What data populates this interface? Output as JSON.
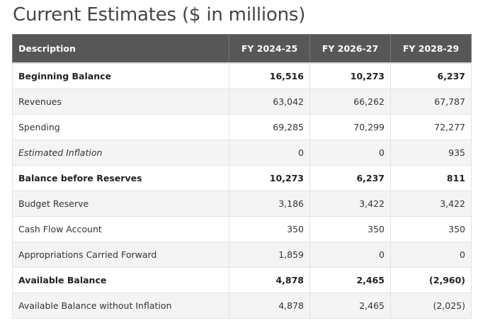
{
  "title": "Current Estimates ($ in millions)",
  "table": {
    "headers": [
      "Description",
      "FY 2024-25",
      "FY 2026-27",
      "FY 2028-29"
    ],
    "rows": [
      {
        "label": "Beginning Balance",
        "values": [
          "16,516",
          "10,273",
          "6,237"
        ],
        "style": "bold"
      },
      {
        "label": "Revenues",
        "values": [
          "63,042",
          "66,262",
          "67,787"
        ],
        "style": "normal"
      },
      {
        "label": "Spending",
        "values": [
          "69,285",
          "70,299",
          "72,277"
        ],
        "style": "normal"
      },
      {
        "label": "Estimated Inflation",
        "values": [
          "0",
          "0",
          "935"
        ],
        "style": "italic"
      },
      {
        "label": "Balance before Reserves",
        "values": [
          "10,273",
          "6,237",
          "811"
        ],
        "style": "bold"
      },
      {
        "label": "Budget Reserve",
        "values": [
          "3,186",
          "3,422",
          "3,422"
        ],
        "style": "normal"
      },
      {
        "label": "Cash Flow Account",
        "values": [
          "350",
          "350",
          "350"
        ],
        "style": "normal"
      },
      {
        "label": "Appropriations Carried Forward",
        "values": [
          "1,859",
          "0",
          "0"
        ],
        "style": "normal"
      },
      {
        "label": "Available Balance",
        "values": [
          "4,878",
          "2,465",
          "(2,960)"
        ],
        "style": "bold"
      },
      {
        "label": "Available Balance without Inflation",
        "values": [
          "4,878",
          "2,465",
          "(2,025)"
        ],
        "style": "normal"
      }
    ]
  },
  "colors": {
    "header_bg": "#575757",
    "header_text": "#ffffff",
    "stripe_bg": "#f4f4f4"
  }
}
